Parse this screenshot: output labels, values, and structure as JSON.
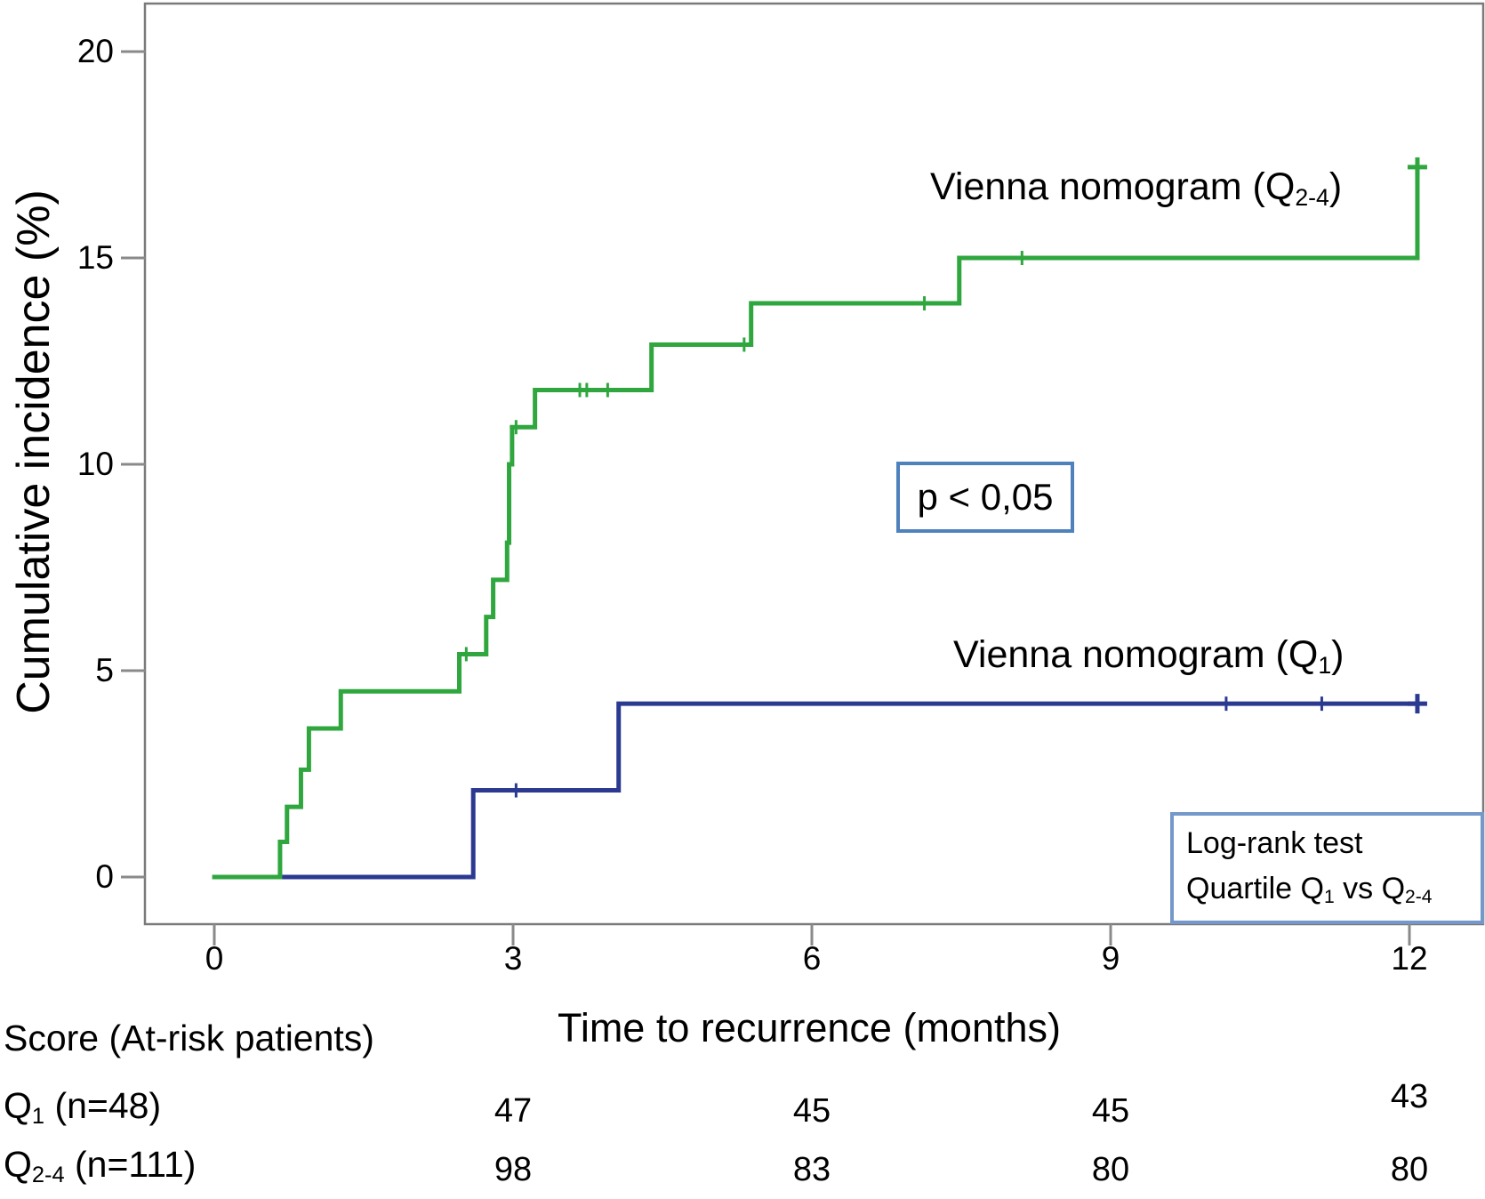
{
  "axes": {
    "y_label": "Cumulative incidence (%)",
    "x_label": "Time to recurrence (months)",
    "y_tick_labels": [
      "20",
      "15",
      "10",
      "5",
      "0"
    ],
    "x_tick_labels": [
      "0",
      "3",
      "6",
      "9",
      "12"
    ]
  },
  "series_labels": {
    "q24_prefix": "Vienna nomogram (Q",
    "q24_sub": "2-4",
    "q24_suffix": ")",
    "q1_prefix": "Vienna nomogram (Q",
    "q1_sub": "1",
    "q1_suffix": ")"
  },
  "annotations": {
    "p_value": "p < 0,05",
    "logrank_line1": "Log-rank test",
    "logrank_line2_prefix": "Quartile Q",
    "logrank_line2_sub1": "1",
    "logrank_line2_mid": " vs Q",
    "logrank_line2_sub2": "2-4"
  },
  "at_risk": {
    "header": "Score (At-risk patients)",
    "rows": [
      {
        "label_prefix": "Q",
        "label_sub": "1",
        "label_suffix": " (n=48)",
        "values": [
          "47",
          "45",
          "45",
          "43"
        ]
      },
      {
        "label_prefix": "Q",
        "label_sub": "2-4",
        "label_suffix": " (n=111)",
        "values": [
          "98",
          "83",
          "80",
          "80"
        ]
      }
    ]
  },
  "chart_data": {
    "type": "line",
    "subtype": "cumulative-incidence-step",
    "title": "",
    "xlabel": "Time to recurrence (months)",
    "ylabel": "Cumulative incidence (%)",
    "xlim": [
      -0.3,
      12.7
    ],
    "ylim": [
      -1.2,
      21
    ],
    "x_ticks": [
      0,
      3,
      6,
      9,
      12
    ],
    "y_ticks": [
      0,
      5,
      10,
      15,
      20
    ],
    "grid": false,
    "legend_position": "inline-labels",
    "colors": {
      "q24_green": "#2fa73e",
      "q1_blue": "#2b3a90",
      "axis_gray": "#7a7a7a",
      "p_box_border": "#4f81bd",
      "logrank_box_border": "#7398c9"
    },
    "p_value_label": "p < 0,05",
    "series": [
      {
        "name": "Vienna nomogram (Q2-4)",
        "n": 111,
        "color": "#2fa73e",
        "points": [
          [
            -0.02,
            0
          ],
          [
            0.66,
            0
          ],
          [
            0.66,
            0.85
          ],
          [
            0.73,
            0.85
          ],
          [
            0.73,
            1.7
          ],
          [
            0.87,
            1.7
          ],
          [
            0.87,
            2.6
          ],
          [
            0.95,
            2.6
          ],
          [
            0.95,
            3.6
          ],
          [
            1.27,
            3.6
          ],
          [
            1.27,
            4.5
          ],
          [
            2.46,
            4.5
          ],
          [
            2.46,
            5.4
          ],
          [
            2.73,
            5.4
          ],
          [
            2.73,
            6.3
          ],
          [
            2.8,
            6.3
          ],
          [
            2.8,
            7.2
          ],
          [
            2.94,
            7.2
          ],
          [
            2.94,
            8.1
          ],
          [
            2.96,
            8.1
          ],
          [
            2.96,
            10.0
          ],
          [
            2.99,
            10.0
          ],
          [
            2.99,
            10.9
          ],
          [
            3.22,
            10.9
          ],
          [
            3.22,
            11.8
          ],
          [
            4.39,
            11.8
          ],
          [
            4.39,
            12.9
          ],
          [
            5.39,
            12.9
          ],
          [
            5.39,
            13.9
          ],
          [
            7.48,
            13.9
          ],
          [
            7.48,
            15.0
          ],
          [
            12.08,
            15.0
          ],
          [
            12.08,
            17.2
          ]
        ],
        "censor_marks": [
          [
            2.53,
            5.4
          ],
          [
            3.03,
            10.9
          ],
          [
            3.67,
            11.8
          ],
          [
            3.74,
            11.8
          ],
          [
            3.95,
            11.8
          ],
          [
            5.32,
            12.9
          ],
          [
            7.13,
            13.9
          ],
          [
            8.11,
            15.0
          ]
        ],
        "end_censor": [
          12.08,
          17.2
        ]
      },
      {
        "name": "Vienna nomogram (Q1)",
        "n": 48,
        "color": "#2b3a90",
        "points": [
          [
            -0.02,
            0
          ],
          [
            2.6,
            0
          ],
          [
            2.6,
            2.1
          ],
          [
            4.06,
            2.1
          ],
          [
            4.06,
            4.2
          ],
          [
            12.08,
            4.2
          ]
        ],
        "censor_marks": [
          [
            3.03,
            2.1
          ],
          [
            10.16,
            4.2
          ],
          [
            11.12,
            4.2
          ]
        ],
        "end_censor": [
          12.08,
          4.2
        ]
      }
    ]
  }
}
